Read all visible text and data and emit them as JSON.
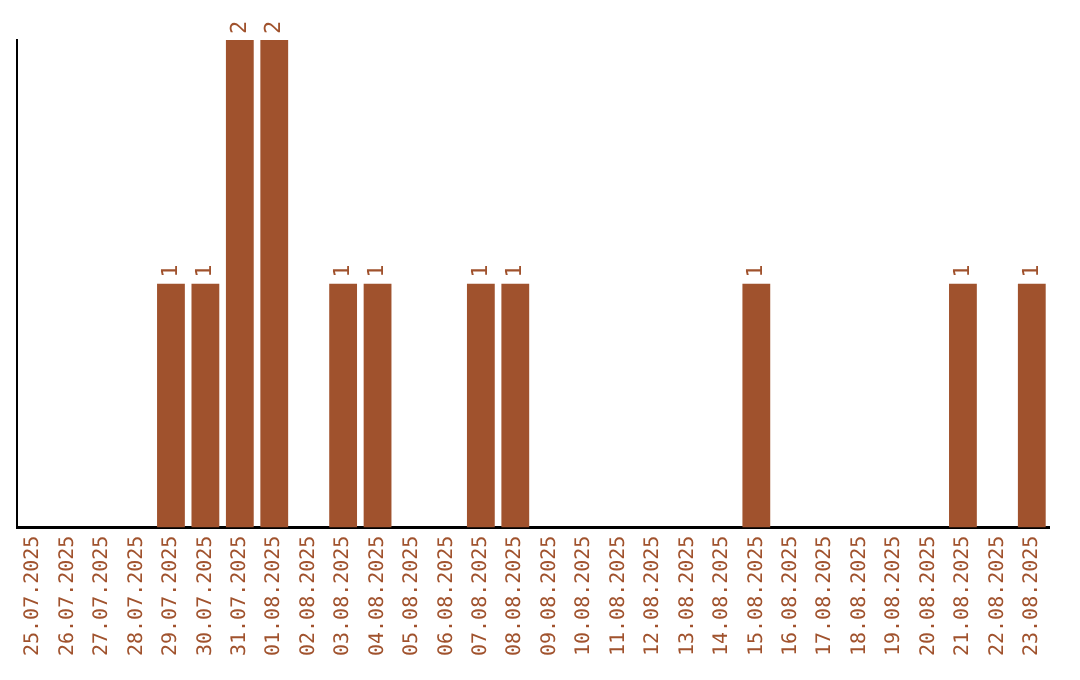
{
  "chart_data": {
    "type": "bar",
    "categories": [
      "25.07.2025",
      "26.07.2025",
      "27.07.2025",
      "28.07.2025",
      "29.07.2025",
      "30.07.2025",
      "31.07.2025",
      "01.08.2025",
      "02.08.2025",
      "03.08.2025",
      "04.08.2025",
      "05.08.2025",
      "06.08.2025",
      "07.08.2025",
      "08.08.2025",
      "09.08.2025",
      "10.08.2025",
      "11.08.2025",
      "12.08.2025",
      "13.08.2025",
      "14.08.2025",
      "15.08.2025",
      "16.08.2025",
      "17.08.2025",
      "18.08.2025",
      "19.08.2025",
      "20.08.2025",
      "21.08.2025",
      "22.08.2025",
      "23.08.2025"
    ],
    "values": [
      0,
      0,
      0,
      0,
      1,
      1,
      2,
      2,
      0,
      1,
      1,
      0,
      0,
      1,
      1,
      0,
      0,
      0,
      0,
      0,
      0,
      1,
      0,
      0,
      0,
      0,
      0,
      1,
      0,
      1
    ],
    "value_labels": [
      null,
      null,
      null,
      null,
      "1",
      "1",
      "2",
      "2",
      null,
      "1",
      "1",
      null,
      null,
      "1",
      "1",
      null,
      null,
      null,
      null,
      null,
      null,
      "1",
      null,
      null,
      null,
      null,
      null,
      "1",
      null,
      "1"
    ],
    "color": "#a0522d",
    "tick_labels": "x",
    "grid": false,
    "legend": false
  }
}
